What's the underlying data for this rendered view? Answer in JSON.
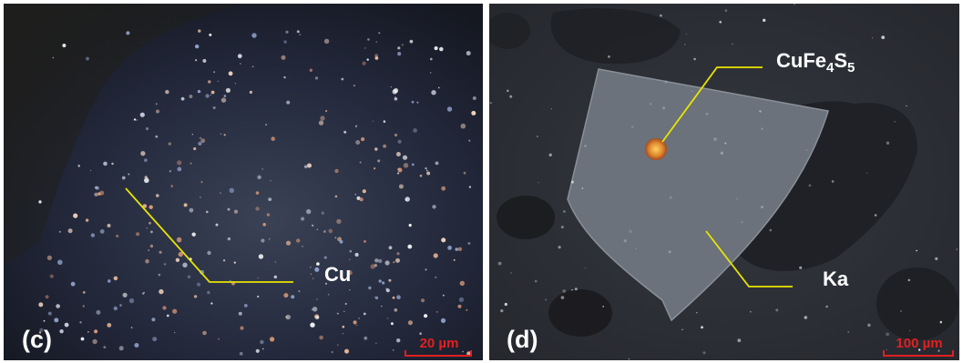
{
  "panels": [
    {
      "label": "(c)",
      "annotations": [
        {
          "text": "Cu"
        }
      ],
      "scale_bar": "20 µm",
      "colors": {
        "line": "#e8e400",
        "scale": "#e02020"
      }
    },
    {
      "label": "(d)",
      "annotations": [
        {
          "formula": {
            "a": "CuFe",
            "b": "4",
            "c": "S",
            "d": "5"
          }
        },
        {
          "text": "Ka"
        }
      ],
      "scale_bar": "100 µm",
      "colors": {
        "line": "#e8e400",
        "scale": "#e02020"
      }
    }
  ]
}
